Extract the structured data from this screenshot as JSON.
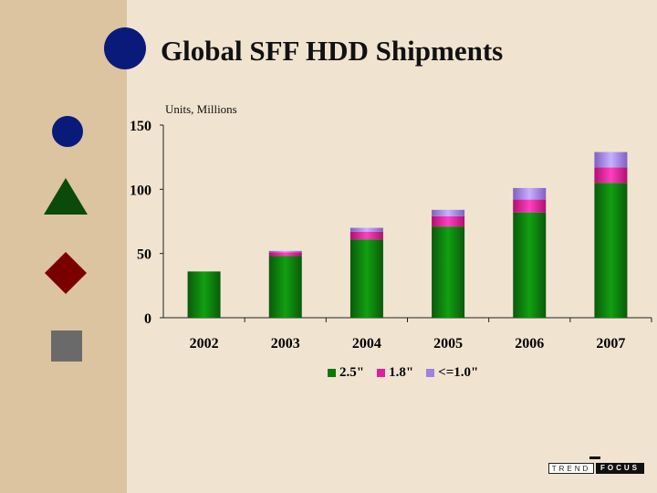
{
  "slide": {
    "title": "Global SFF HDD Shipments",
    "colors": {
      "sidebar": "#dcc4a0",
      "background": "#f0e4d0",
      "blue": "#0a1a7a",
      "green": "#0a4a0a",
      "red": "#7a0000",
      "gray": "#6a6a6a"
    },
    "decorations": [
      "circle-icon",
      "triangle-icon",
      "diamond-icon",
      "square-icon"
    ]
  },
  "chart_data": {
    "type": "bar",
    "stacked": true,
    "ylabel": "Units, Millions",
    "ylim": [
      0,
      150
    ],
    "yticks": [
      0,
      50,
      100,
      150
    ],
    "categories": [
      "2002",
      "2003",
      "2004",
      "2005",
      "2006",
      "2007"
    ],
    "series": [
      {
        "name": "2.5\"",
        "color": "#0a7a0a",
        "values": [
          36,
          48,
          61,
          71,
          82,
          105
        ]
      },
      {
        "name": "1.8\"",
        "color": "#e0209a",
        "values": [
          0,
          3,
          6,
          8,
          10,
          12
        ]
      },
      {
        "name": "<=1.0\"",
        "color": "#a080e0",
        "values": [
          0,
          1,
          3,
          5,
          9,
          12
        ]
      }
    ],
    "grid": false,
    "legend": "bottom"
  },
  "logo": {
    "left": "TREND",
    "right": "FOCUS"
  }
}
